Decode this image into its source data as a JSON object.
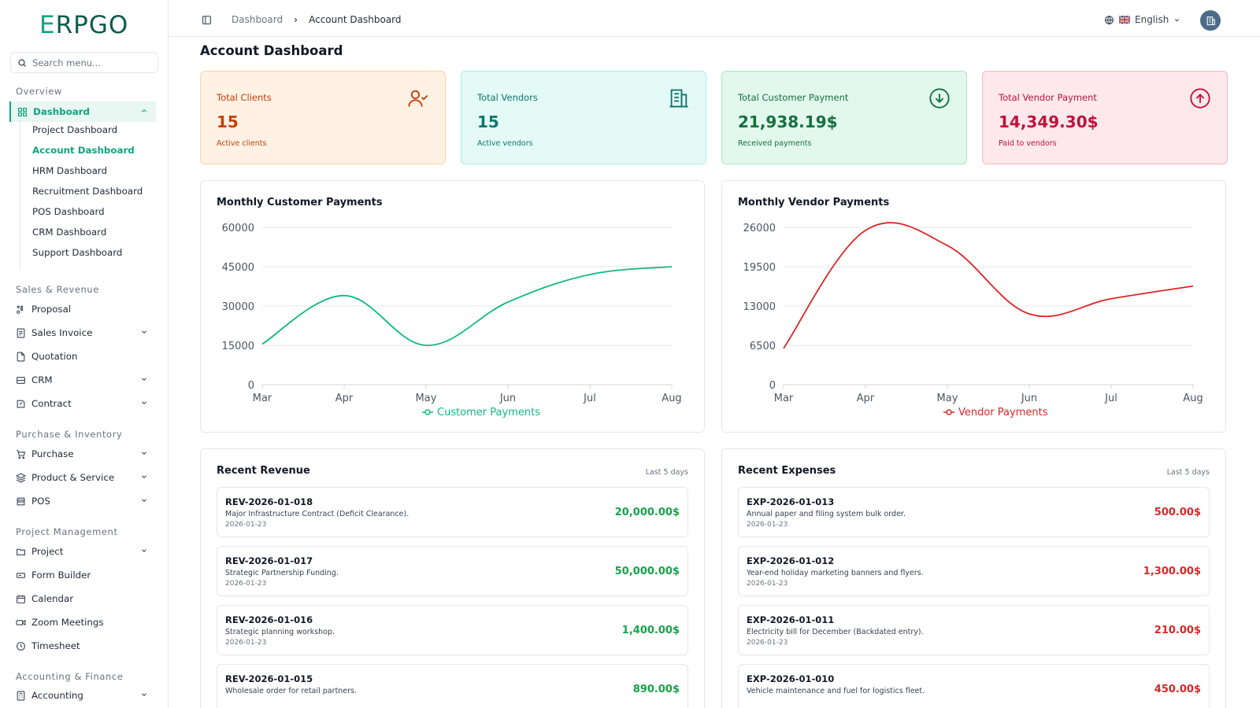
{
  "brand": {
    "logo_first": "E",
    "logo_rest": "RPGO"
  },
  "search": {
    "placeholder": "Search menu..."
  },
  "sidebar": {
    "overview_label": "Overview",
    "dashboard_label": "Dashboard",
    "sub_items": [
      "Project Dashboard",
      "Account Dashboard",
      "HRM Dashboard",
      "Recruitment Dashboard",
      "POS Dashboard",
      "CRM Dashboard",
      "Support Dashboard"
    ],
    "sales_label": "Sales & Revenue",
    "sales_items": [
      "Proposal",
      "Sales Invoice",
      "Quotation",
      "CRM",
      "Contract"
    ],
    "purchase_label": "Purchase & Inventory",
    "purchase_items": [
      "Purchase",
      "Product & Service",
      "POS"
    ],
    "project_label": "Project Management",
    "project_items": [
      "Project",
      "Form Builder",
      "Calendar",
      "Zoom Meetings",
      "Timesheet"
    ],
    "accounting_label": "Accounting & Finance",
    "accounting_items": [
      "Accounting"
    ]
  },
  "header": {
    "crumb_root": "Dashboard",
    "crumb_current": "Account Dashboard",
    "language": "English"
  },
  "page": {
    "title": "Account Dashboard"
  },
  "stats": [
    {
      "label": "Total Clients",
      "value": "15",
      "sub": "Active clients",
      "icon": "user-check-icon",
      "color": "#c2410c",
      "bg": "#fff1e3",
      "border": "#fdd4a8"
    },
    {
      "label": "Total Vendors",
      "value": "15",
      "sub": "Active vendors",
      "icon": "building-icon",
      "color": "#0f766e",
      "bg": "#e3faf6",
      "border": "#a8eee1"
    },
    {
      "label": "Total Customer Payment",
      "value": "21,938.19$",
      "sub": "Received payments",
      "icon": "arrow-down-circle-icon",
      "color": "#15703f",
      "bg": "#e2f8ec",
      "border": "#a7e8c4"
    },
    {
      "label": "Total Vendor Payment",
      "value": "14,349.30$",
      "sub": "Paid to vendors",
      "icon": "arrow-up-circle-icon",
      "color": "#be123c",
      "bg": "#fde8ec",
      "border": "#f7b7c3"
    }
  ],
  "charts": {
    "customer": {
      "title": "Monthly Customer Payments",
      "legend": "Customer Payments",
      "color": "#10b981"
    },
    "vendor": {
      "title": "Monthly Vendor Payments",
      "legend": "Vendor Payments",
      "color": "#dc2626"
    }
  },
  "chart_data": [
    {
      "type": "line",
      "title": "Monthly Customer Payments",
      "categories": [
        "Mar",
        "Apr",
        "May",
        "Jun",
        "Jul",
        "Aug"
      ],
      "series": [
        {
          "name": "Customer Payments",
          "values": [
            15500,
            34000,
            15000,
            31500,
            42000,
            45000
          ]
        }
      ],
      "yticks": [
        0,
        15000,
        30000,
        45000,
        60000
      ],
      "ylim": [
        0,
        60000
      ],
      "grid": true,
      "legend": "bottom"
    },
    {
      "type": "line",
      "title": "Monthly Vendor Payments",
      "categories": [
        "Mar",
        "Apr",
        "May",
        "Jun",
        "Jul",
        "Aug"
      ],
      "series": [
        {
          "name": "Vendor Payments",
          "values": [
            6000,
            25500,
            23000,
            11700,
            14200,
            16300
          ]
        }
      ],
      "yticks": [
        0,
        6500,
        13000,
        19500,
        26000
      ],
      "ylim": [
        0,
        26000
      ],
      "grid": true,
      "legend": "bottom"
    }
  ],
  "revenue": {
    "title": "Recent Revenue",
    "meta": "Last 5 days",
    "color": "#16a34a",
    "items": [
      {
        "id": "REV-2026-01-018",
        "desc": "Major Infrastructure Contract (Deficit Clearance).",
        "date": "2026-01-23",
        "amount": "20,000.00$"
      },
      {
        "id": "REV-2026-01-017",
        "desc": "Strategic Partnership Funding.",
        "date": "2026-01-23",
        "amount": "50,000.00$"
      },
      {
        "id": "REV-2026-01-016",
        "desc": "Strategic planning workshop.",
        "date": "2026-01-23",
        "amount": "1,400.00$"
      },
      {
        "id": "REV-2026-01-015",
        "desc": "Wholesale order for retail partners.",
        "date": "",
        "amount": "890.00$"
      }
    ]
  },
  "expenses": {
    "title": "Recent Expenses",
    "meta": "Last 5 days",
    "color": "#dc2626",
    "items": [
      {
        "id": "EXP-2026-01-013",
        "desc": "Annual paper and filing system bulk order.",
        "date": "2026-01-23",
        "amount": "500.00$"
      },
      {
        "id": "EXP-2026-01-012",
        "desc": "Year-end holiday marketing banners and flyers.",
        "date": "2026-01-23",
        "amount": "1,300.00$"
      },
      {
        "id": "EXP-2026-01-011",
        "desc": "Electricity bill for December (Backdated entry).",
        "date": "2026-01-23",
        "amount": "210.00$"
      },
      {
        "id": "EXP-2026-01-010",
        "desc": "Vehicle maintenance and fuel for logistics fleet.",
        "date": "",
        "amount": "450.00$"
      }
    ]
  }
}
